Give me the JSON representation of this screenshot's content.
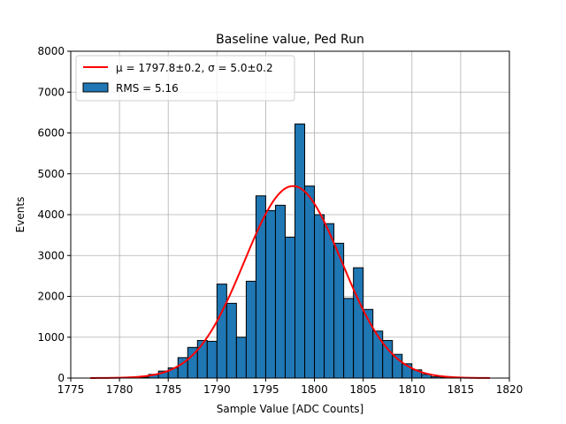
{
  "chart_data": {
    "type": "bar",
    "title": "Baseline value, Ped Run",
    "xlabel": "Sample Value [ADC Counts]",
    "ylabel": "Events",
    "xlim": [
      1775,
      1820
    ],
    "ylim": [
      0,
      8000
    ],
    "xticks": [
      1775,
      1780,
      1785,
      1790,
      1795,
      1800,
      1805,
      1810,
      1815,
      1820
    ],
    "yticks": [
      0,
      1000,
      2000,
      3000,
      4000,
      5000,
      6000,
      7000,
      8000
    ],
    "grid": true,
    "legend_position": "top-left",
    "bin_width": 1,
    "histogram": {
      "name": "RMS = 5.16",
      "color": "#1f77b4",
      "edgecolor": "#000000",
      "bin_left_edges": [
        1782,
        1783,
        1784,
        1785,
        1786,
        1787,
        1788,
        1789,
        1790,
        1791,
        1792,
        1793,
        1794,
        1795,
        1796,
        1797,
        1798,
        1799,
        1800,
        1801,
        1802,
        1803,
        1804,
        1805,
        1806,
        1807,
        1808,
        1809,
        1810,
        1811,
        1812,
        1813
      ],
      "counts": [
        20,
        90,
        170,
        250,
        500,
        750,
        920,
        900,
        2300,
        1830,
        1000,
        2370,
        4460,
        4100,
        4230,
        3450,
        6220,
        4700,
        4000,
        3780,
        3300,
        1950,
        2700,
        1680,
        1150,
        920,
        580,
        350,
        200,
        90,
        30,
        10
      ]
    },
    "fit": {
      "name": "$\\mu = 1797.8 \\pm 0.2$, $\\sigma = 5.0 \\pm 0.2$",
      "mu": 1797.8,
      "sigma": 5.0,
      "amplitude": 4700,
      "x_range": [
        1777,
        1818
      ],
      "color": "#ff0000"
    },
    "legend": {
      "fit_label": "μ = 1797.8±0.2, σ = 5.0±0.2",
      "hist_label": "RMS = 5.16"
    }
  }
}
